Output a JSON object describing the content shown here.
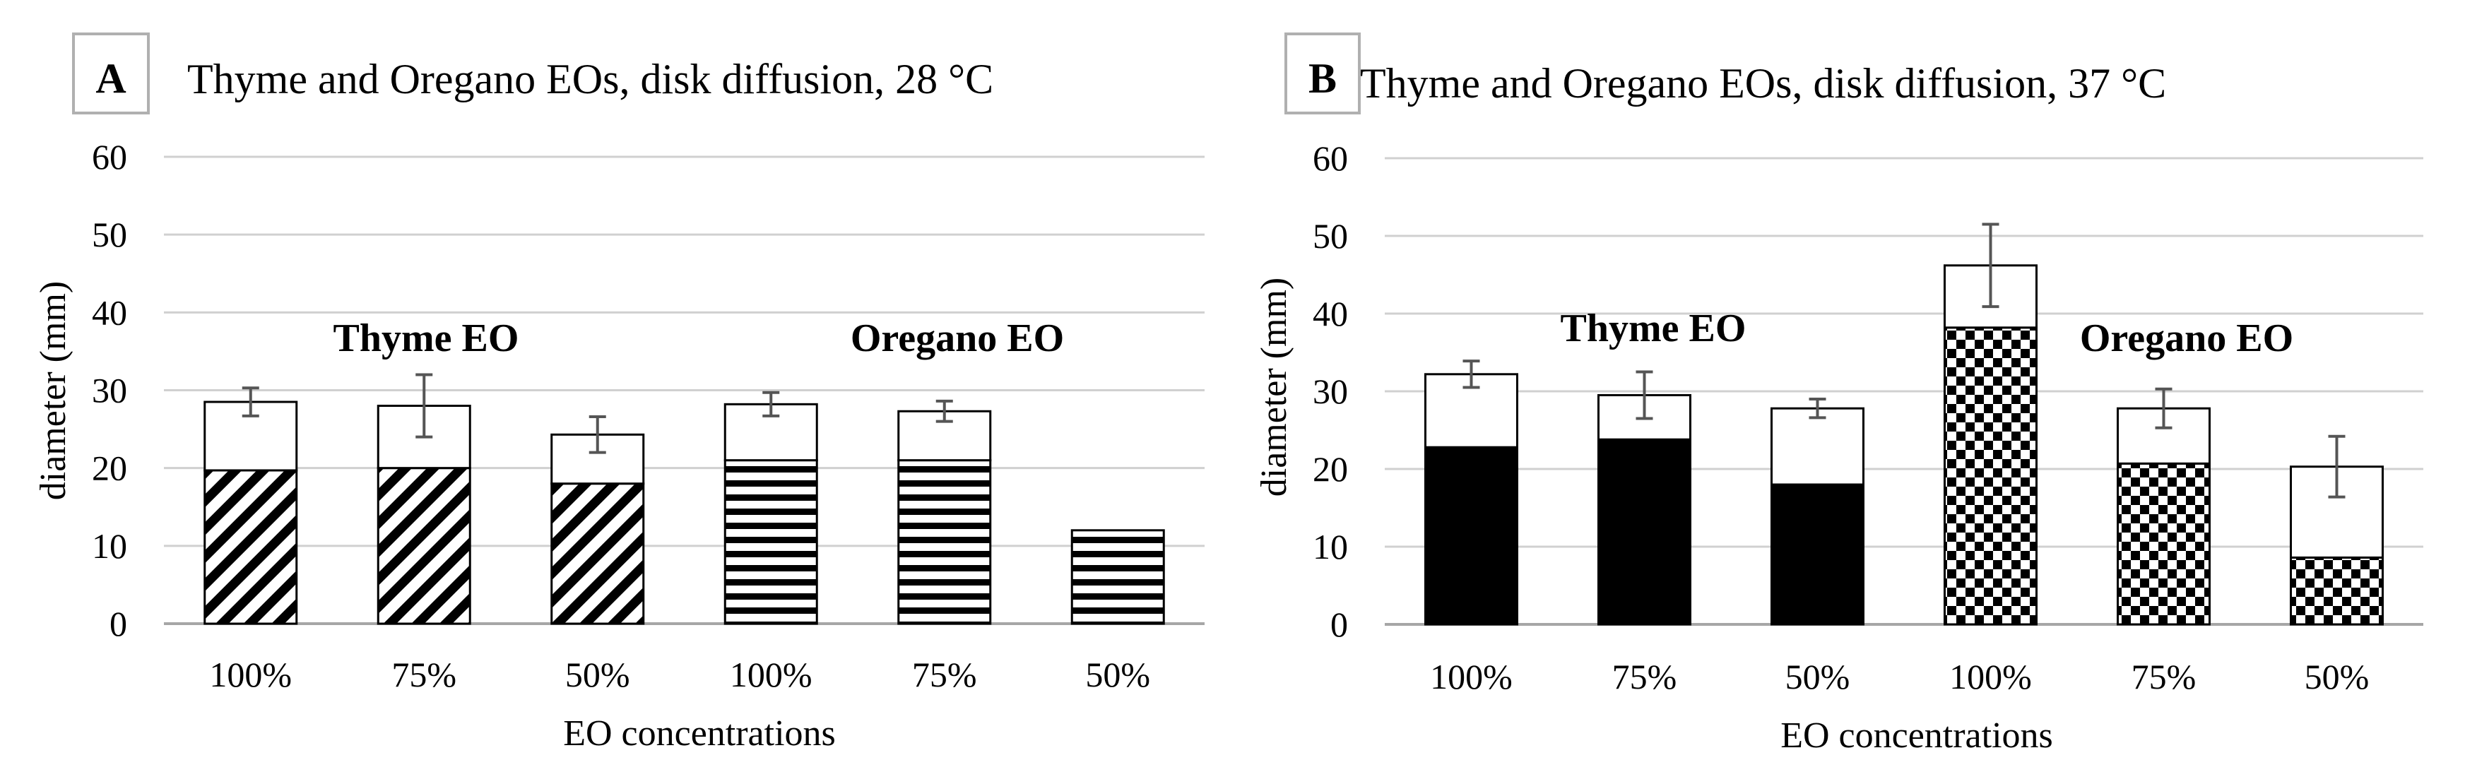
{
  "figure": {
    "panels": [
      {
        "letter": "A",
        "title": "Thyme and Oregano  EOs, disk diffusion,  28 °C",
        "xlabel": "EO concentrations",
        "ylabel": "diameter (mm)",
        "group_labels": [
          "Thyme EO",
          "Oregano EO"
        ]
      },
      {
        "letter": "B",
        "title": "Thyme and Oregano EOs, disk diffusion,  37 °C",
        "xlabel": "EO concentrations",
        "ylabel": "diameter (mm)",
        "group_labels": [
          "Thyme EO",
          "Oregano EO"
        ]
      }
    ]
  },
  "chart_data": [
    {
      "type": "bar",
      "stacked": true,
      "title": "Thyme and Oregano  EOs, disk diffusion,  28 °C",
      "xlabel": "EO concentrations",
      "ylabel": "diameter (mm)",
      "ylim": [
        0,
        60
      ],
      "yticks": [
        0,
        10,
        20,
        30,
        40,
        50,
        60
      ],
      "grid": true,
      "categories": [
        "100%",
        "75%",
        "50%",
        "100%",
        "75%",
        "50%"
      ],
      "groups": [
        {
          "name": "Thyme EO",
          "indices": [
            0,
            1,
            2
          ]
        },
        {
          "name": "Oregano EO",
          "indices": [
            3,
            4,
            5
          ]
        }
      ],
      "series": [
        {
          "values": [
            19.7,
            20.0,
            18.0,
            21.0,
            21.0,
            12.0
          ]
        },
        {
          "values": [
            8.8,
            8.0,
            6.3,
            7.2,
            6.3,
            0.0
          ]
        }
      ],
      "totals": [
        28.5,
        28.0,
        24.3,
        28.2,
        27.3,
        12.0
      ],
      "error": [
        1.8,
        4.0,
        2.3,
        1.5,
        1.3,
        0.0
      ],
      "bottom_fill": [
        "diagonal-stripes",
        "diagonal-stripes",
        "diagonal-stripes",
        "horizontal-stripes",
        "horizontal-stripes",
        "horizontal-stripes"
      ],
      "top_fill": "white"
    },
    {
      "type": "bar",
      "stacked": true,
      "title": "Thyme and Oregano EOs, disk diffusion,  37 °C",
      "xlabel": "EO concentrations",
      "ylabel": "diameter (mm)",
      "ylim": [
        0,
        60
      ],
      "yticks": [
        0,
        10,
        20,
        30,
        40,
        50,
        60
      ],
      "grid": true,
      "categories": [
        "100%",
        "75%",
        "50%",
        "100%",
        "75%",
        "50%"
      ],
      "groups": [
        {
          "name": "Thyme EO",
          "indices": [
            0,
            1,
            2
          ]
        },
        {
          "name": "Oregano EO",
          "indices": [
            3,
            4,
            5
          ]
        }
      ],
      "series": [
        {
          "values": [
            22.8,
            23.8,
            18.0,
            38.2,
            20.7,
            8.6
          ]
        },
        {
          "values": [
            9.4,
            5.7,
            9.8,
            8.0,
            7.1,
            11.7
          ]
        }
      ],
      "totals": [
        32.2,
        29.5,
        27.8,
        46.2,
        27.8,
        20.3
      ],
      "error": [
        1.7,
        3.0,
        1.2,
        5.3,
        2.5,
        3.9
      ],
      "bottom_fill": [
        "black",
        "black",
        "black",
        "checkerboard",
        "checkerboard",
        "checkerboard"
      ],
      "top_fill": "white"
    }
  ]
}
